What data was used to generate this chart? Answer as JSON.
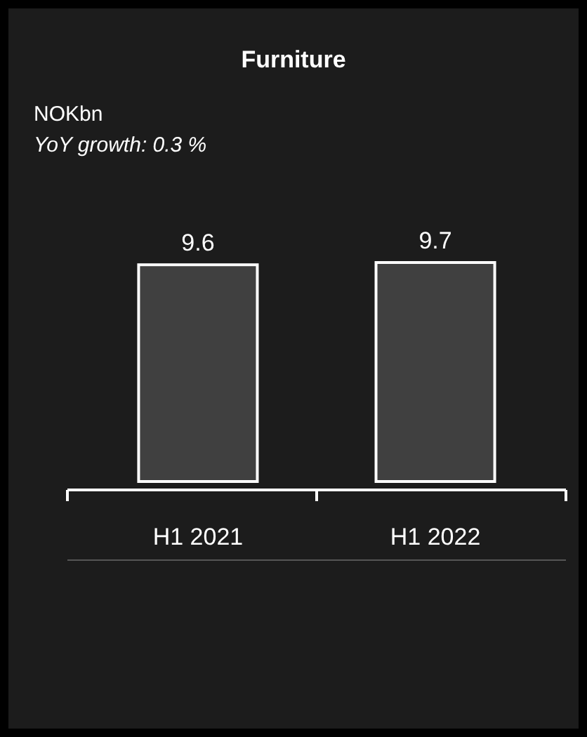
{
  "chart_data": {
    "type": "bar",
    "title": "Furniture",
    "subtitle": "YoY growth: 0.3 %",
    "annotations": [
      "NOKbn"
    ],
    "categories": [
      "H1 2021",
      "H1 2022"
    ],
    "series": [
      {
        "color": "#404040",
        "values": [
          9.6,
          9.7
        ]
      }
    ],
    "data_labels": true,
    "grid": false
  }
}
